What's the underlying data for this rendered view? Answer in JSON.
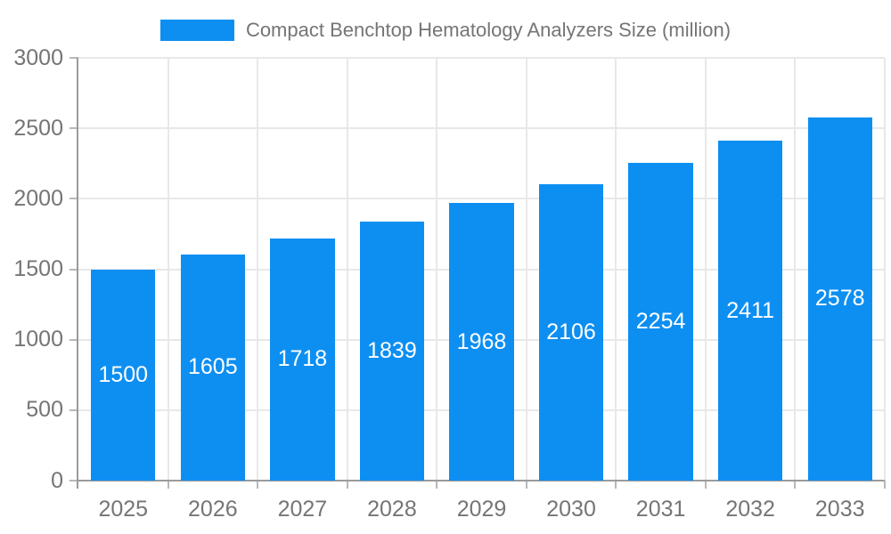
{
  "legend": {
    "label": "Compact Benchtop Hematology Analyzers Size (million)",
    "swatch_color": "#0d8ff2"
  },
  "chart_data": {
    "type": "bar",
    "title": "Compact Benchtop Hematology Analyzers Size (million)",
    "categories": [
      "2025",
      "2026",
      "2027",
      "2028",
      "2029",
      "2030",
      "2031",
      "2032",
      "2033"
    ],
    "values": [
      1500,
      1605,
      1718,
      1839,
      1968,
      2106,
      2254,
      2411,
      2578
    ],
    "xlabel": "",
    "ylabel": "",
    "ylim": [
      0,
      3000
    ],
    "yticks": [
      0,
      500,
      1000,
      1500,
      2000,
      2500,
      3000
    ],
    "grid": true,
    "legend_position": "top-center",
    "bar_color": "#0d8ff2",
    "value_label_style": "white-inside-centered"
  },
  "colors": {
    "bar": "#0d8ff2",
    "grid": "#e8e8e8",
    "axis": "#9b9b9b",
    "tick": "#b8b8b8",
    "text": "#757575",
    "value_text": "#ffffff",
    "background": "#ffffff"
  }
}
